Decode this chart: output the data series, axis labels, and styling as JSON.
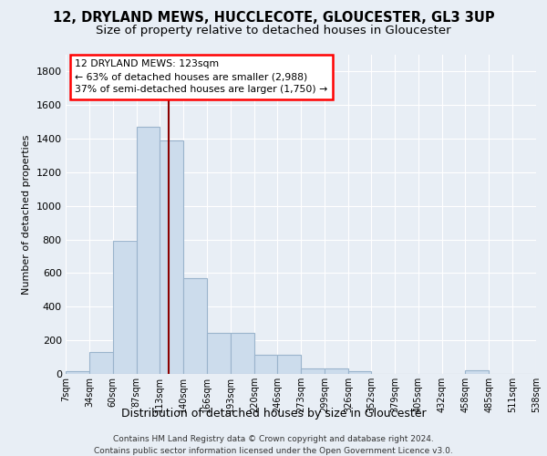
{
  "title": "12, DRYLAND MEWS, HUCCLECOTE, GLOUCESTER, GL3 3UP",
  "subtitle": "Size of property relative to detached houses in Gloucester",
  "xlabel": "Distribution of detached houses by size in Gloucester",
  "ylabel": "Number of detached properties",
  "bin_edges": [
    7,
    34,
    60,
    87,
    113,
    140,
    166,
    193,
    220,
    246,
    273,
    299,
    326,
    352,
    379,
    405,
    432,
    458,
    485,
    511,
    538
  ],
  "bar_heights": [
    15,
    130,
    790,
    1470,
    1390,
    570,
    245,
    245,
    115,
    115,
    35,
    30,
    15,
    0,
    0,
    0,
    0,
    20,
    0,
    0
  ],
  "bar_color": "#ccdcec",
  "bar_edge_color": "#9ab4cc",
  "red_line_x": 123,
  "ylim": [
    0,
    1900
  ],
  "yticks": [
    0,
    200,
    400,
    600,
    800,
    1000,
    1200,
    1400,
    1600,
    1800
  ],
  "annotation_line1": "12 DRYLAND MEWS: 123sqm",
  "annotation_line2": "← 63% of detached houses are smaller (2,988)",
  "annotation_line3": "37% of semi-detached houses are larger (1,750) →",
  "footnote1": "Contains HM Land Registry data © Crown copyright and database right 2024.",
  "footnote2": "Contains public sector information licensed under the Open Government Licence v3.0.",
  "background_color": "#e8eef5",
  "grid_color": "#ffffff",
  "title_fontsize": 10.5,
  "subtitle_fontsize": 9.5,
  "tick_labels": [
    "7sqm",
    "34sqm",
    "60sqm",
    "87sqm",
    "113sqm",
    "140sqm",
    "166sqm",
    "193sqm",
    "220sqm",
    "246sqm",
    "273sqm",
    "299sqm",
    "326sqm",
    "352sqm",
    "379sqm",
    "405sqm",
    "432sqm",
    "458sqm",
    "485sqm",
    "511sqm",
    "538sqm"
  ]
}
